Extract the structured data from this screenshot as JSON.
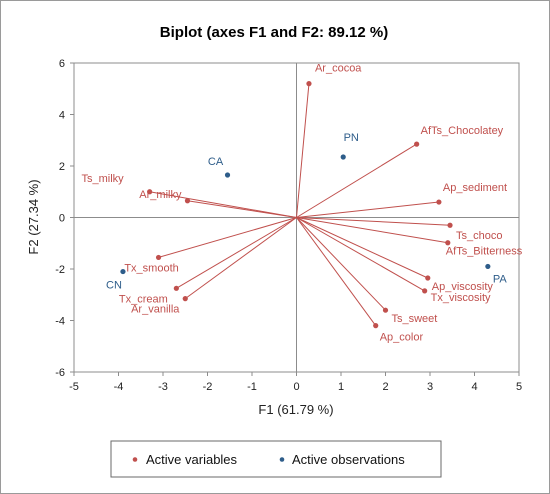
{
  "chart_data": {
    "type": "scatter",
    "title": "Biplot (axes F1 and F2: 89.12 %)",
    "xlabel": "F1 (61.79 %)",
    "ylabel": "F2 (27.34 %)",
    "xlim": [
      -5,
      5
    ],
    "ylim": [
      -6,
      6
    ],
    "x_ticks": [
      "-5",
      "-4",
      "-3",
      "-2",
      "-1",
      "0",
      "1",
      "2",
      "3",
      "4",
      "5"
    ],
    "y_ticks": [
      "-6",
      "-4",
      "-2",
      "0",
      "2",
      "4",
      "6"
    ],
    "grid": false,
    "colors": {
      "variables": "#c0504d",
      "observations": "#2e5d8a"
    },
    "variables": [
      {
        "label": "Ar_cocoa",
        "x": 0.28,
        "y": 5.2
      },
      {
        "label": "AfTs_Chocolatey",
        "x": 2.7,
        "y": 2.85
      },
      {
        "label": "Ap_sediment",
        "x": 3.2,
        "y": 0.6
      },
      {
        "label": "Ts_choco",
        "x": 3.45,
        "y": -0.3
      },
      {
        "label": "AfTs_Bitterness",
        "x": 3.4,
        "y": -0.98
      },
      {
        "label": "Ap_viscosity",
        "x": 2.95,
        "y": -2.35
      },
      {
        "label": "Tx_viscosity",
        "x": 2.88,
        "y": -2.85
      },
      {
        "label": "Ts_sweet",
        "x": 2.0,
        "y": -3.6
      },
      {
        "label": "Ap_color",
        "x": 1.78,
        "y": -4.2
      },
      {
        "label": "Ts_milky",
        "x": -3.3,
        "y": 1.0
      },
      {
        "label": "Ar_milky",
        "x": -2.45,
        "y": 0.65
      },
      {
        "label": "Tx_smooth",
        "x": -3.1,
        "y": -1.55
      },
      {
        "label": "Tx_cream",
        "x": -2.7,
        "y": -2.75
      },
      {
        "label": "Ar_vanilla",
        "x": -2.5,
        "y": -3.15
      }
    ],
    "observations": [
      {
        "label": "PN",
        "x": 1.05,
        "y": 2.35
      },
      {
        "label": "CA",
        "x": -1.55,
        "y": 1.65
      },
      {
        "label": "PA",
        "x": 4.3,
        "y": -1.9
      },
      {
        "label": "CN",
        "x": -3.9,
        "y": -2.1
      }
    ],
    "legend": {
      "position": "bottom",
      "items": [
        {
          "label": "Active variables",
          "series": "variables"
        },
        {
          "label": "Active observations",
          "series": "observations"
        }
      ]
    }
  }
}
